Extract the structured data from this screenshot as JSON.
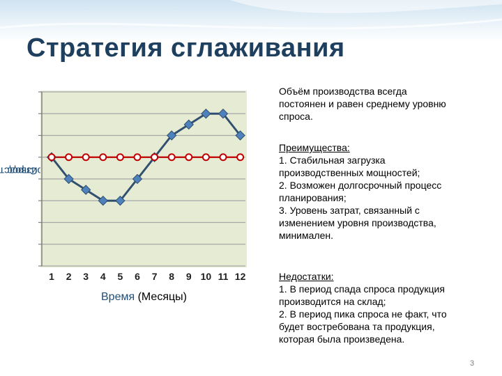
{
  "slide": {
    "title": "Стратегия сглаживания",
    "page_number": "3"
  },
  "description": {
    "lines": [
      "Объём производства всегда",
      "постоянен и равен среднему уровню",
      "спроса."
    ]
  },
  "advantages": {
    "heading": "Преимущества:",
    "lines": [
      "1. Стабильная загрузка",
      "производственных мощностей;",
      "2. Возможен долгосрочный процесс",
      "планирования;",
      "3. Уровень затрат, связанный с",
      "изменением уровня производства,",
      "минимален."
    ]
  },
  "disadvantages": {
    "heading": "Недостатки:",
    "lines": [
      "1. В период спада спроса продукция",
      "производится на склад;",
      "2. В период пика спроса не факт, что",
      "будет востребована та продукция,",
      "которая была произведена."
    ]
  },
  "chart_data": {
    "type": "line",
    "categories": [
      "1",
      "2",
      "3",
      "4",
      "5",
      "6",
      "7",
      "8",
      "9",
      "10",
      "11",
      "12"
    ],
    "xlabel_main": "Время",
    "xlabel_unit": "(Месяцы)",
    "ylabel_main": "Спрос",
    "ylabel_unit": "(Производство)",
    "ylim": [
      0,
      8
    ],
    "grid": true,
    "series": [
      {
        "values": [
          5,
          4,
          3.5,
          3,
          3,
          4,
          5,
          6,
          6.5,
          7,
          7,
          6
        ],
        "color": "#31506f",
        "marker": "diamond",
        "marker_color": "#4f81bd"
      },
      {
        "values": [
          5,
          5,
          5,
          5,
          5,
          5,
          5,
          5,
          5,
          5,
          5,
          5
        ],
        "color": "#c00000",
        "marker": "circle",
        "marker_color": "#ffffff"
      }
    ]
  }
}
